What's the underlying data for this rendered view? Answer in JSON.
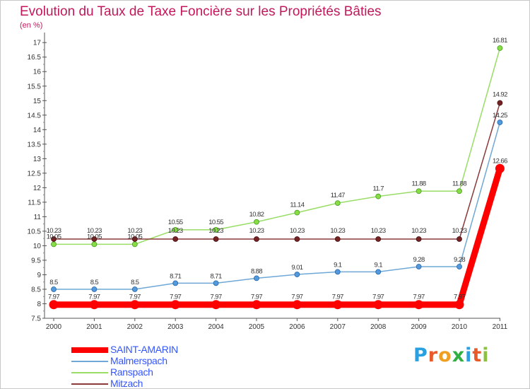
{
  "title": "Evolution du Taux de Taxe Foncière sur les Propriétés Bâties",
  "unit": "(en %)",
  "brand": {
    "text": "Proxiti",
    "letter_colors": [
      "#2aa0e0",
      "#e85a2a",
      "#f0a020",
      "#30b040",
      "#2aa0e0",
      "#e85a2a",
      "#8cc040"
    ]
  },
  "chart_data": {
    "type": "line",
    "title": "Evolution du Taux de Taxe Foncière sur les Propriétés Bâties",
    "ylabel": "(en %)",
    "xlabel": "",
    "x": [
      "2000",
      "2001",
      "2002",
      "2003",
      "2004",
      "2005",
      "2006",
      "2007",
      "2008",
      "2009",
      "2010",
      "2011"
    ],
    "ylim": [
      7.5,
      17.2
    ],
    "yticks": [
      "7.5",
      "8",
      "8.5",
      "9",
      "9.5",
      "10",
      "10.5",
      "11",
      "11.5",
      "12",
      "12.5",
      "13",
      "13.5",
      "14",
      "14.5",
      "15",
      "15.5",
      "16",
      "16.5",
      "17"
    ],
    "grid": false,
    "legend_position": "bottom-left",
    "series": [
      {
        "name": "SAINT-AMARIN",
        "color": "#ff0000",
        "values": [
          7.97,
          7.97,
          7.97,
          7.97,
          7.97,
          7.97,
          7.97,
          7.97,
          7.97,
          7.97,
          7.97,
          12.66
        ],
        "labels": [
          "7.97",
          "7.97",
          "7.97",
          "7.97",
          "7.97",
          "7.97",
          "7.97",
          "7.97",
          "7.97",
          "7.97",
          "7.97",
          "12.66"
        ]
      },
      {
        "name": "Malmerspach",
        "color": "#6fa8d6",
        "values": [
          8.5,
          8.5,
          8.5,
          8.71,
          8.71,
          8.88,
          9.01,
          9.1,
          9.1,
          9.28,
          9.28,
          14.25
        ],
        "labels": [
          "8.5",
          "8.5",
          "8.5",
          "8.71",
          "8.71",
          "8.88",
          "9.01",
          "9.1",
          "9.1",
          "9.28",
          "9.28",
          "14.25"
        ]
      },
      {
        "name": "Ranspach",
        "color": "#99dd66",
        "values": [
          10.05,
          10.05,
          10.05,
          10.55,
          10.55,
          10.82,
          11.14,
          11.47,
          11.7,
          11.88,
          11.88,
          16.81
        ],
        "labels": [
          "10.05",
          "10.05",
          "10.05",
          "10.55",
          "10.55",
          "10.82",
          "11.14",
          "11.47",
          "11.7",
          "11.88",
          "11.88",
          "16.81"
        ]
      },
      {
        "name": "Mitzach",
        "color": "#8b3a3a",
        "values": [
          10.23,
          10.23,
          10.23,
          10.23,
          10.23,
          10.23,
          10.23,
          10.23,
          10.23,
          10.23,
          10.23,
          14.92
        ],
        "labels": [
          "10.23",
          "10.23",
          "10.23",
          "10.23",
          "10.23",
          "10.23",
          "10.23",
          "10.23",
          "10.23",
          "10.23",
          "10.23",
          "14.92"
        ]
      }
    ]
  }
}
